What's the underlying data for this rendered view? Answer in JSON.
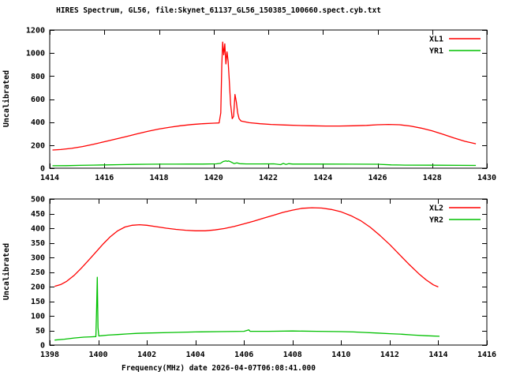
{
  "title": "HIRES Spectrum, GL56, file:Skynet_61137_GL56_150385_100660.spect.cyb.txt",
  "xlabel": "Frequency(MHz) date 2026-04-07T06:08:41.000",
  "colors": {
    "series1": "#ff0000",
    "series2": "#00c000",
    "axis": "#000000",
    "background": "#ffffff"
  },
  "chart_data": [
    {
      "type": "line",
      "title": "",
      "ylabel": "Uncalibrated",
      "xlabel": "",
      "xlim": [
        1414,
        1430
      ],
      "ylim": [
        0,
        1200
      ],
      "xticks": [
        1414,
        1416,
        1418,
        1420,
        1422,
        1424,
        1426,
        1428,
        1430
      ],
      "yticks": [
        0,
        200,
        400,
        600,
        800,
        1000,
        1200
      ],
      "grid": false,
      "legend_position": "top-right-inside",
      "series": [
        {
          "name": "XL1",
          "color": "#ff0000",
          "points": [
            [
              1414.1,
              158
            ],
            [
              1414.4,
              162
            ],
            [
              1414.8,
              172
            ],
            [
              1415.2,
              188
            ],
            [
              1415.6,
              208
            ],
            [
              1416.0,
              230
            ],
            [
              1416.4,
              252
            ],
            [
              1416.8,
              274
            ],
            [
              1417.2,
              298
            ],
            [
              1417.6,
              320
            ],
            [
              1418.0,
              340
            ],
            [
              1418.4,
              356
            ],
            [
              1418.8,
              369
            ],
            [
              1419.2,
              379
            ],
            [
              1419.6,
              386
            ],
            [
              1420.0,
              391
            ],
            [
              1420.2,
              393
            ],
            [
              1420.26,
              480
            ],
            [
              1420.3,
              900
            ],
            [
              1420.33,
              1095
            ],
            [
              1420.37,
              985
            ],
            [
              1420.41,
              1080
            ],
            [
              1420.45,
              905
            ],
            [
              1420.49,
              1010
            ],
            [
              1420.53,
              930
            ],
            [
              1420.57,
              770
            ],
            [
              1420.62,
              560
            ],
            [
              1420.68,
              430
            ],
            [
              1420.73,
              450
            ],
            [
              1420.78,
              640
            ],
            [
              1420.83,
              575
            ],
            [
              1420.88,
              480
            ],
            [
              1420.93,
              430
            ],
            [
              1421.0,
              410
            ],
            [
              1421.3,
              395
            ],
            [
              1421.7,
              386
            ],
            [
              1422.1,
              380
            ],
            [
              1422.6,
              375
            ],
            [
              1423.1,
              371
            ],
            [
              1423.6,
              368
            ],
            [
              1424.1,
              366
            ],
            [
              1424.6,
              366
            ],
            [
              1425.1,
              368
            ],
            [
              1425.6,
              372
            ],
            [
              1426.0,
              377
            ],
            [
              1426.4,
              380
            ],
            [
              1426.8,
              377
            ],
            [
              1427.2,
              366
            ],
            [
              1427.6,
              348
            ],
            [
              1428.0,
              324
            ],
            [
              1428.4,
              294
            ],
            [
              1428.8,
              262
            ],
            [
              1429.2,
              233
            ],
            [
              1429.6,
              212
            ]
          ]
        },
        {
          "name": "YR1",
          "color": "#00c000",
          "points": [
            [
              1414.1,
              21
            ],
            [
              1414.6,
              22
            ],
            [
              1415.1,
              25
            ],
            [
              1415.6,
              27
            ],
            [
              1416.1,
              29
            ],
            [
              1416.6,
              31
            ],
            [
              1417.1,
              33
            ],
            [
              1417.6,
              34
            ],
            [
              1418.1,
              35
            ],
            [
              1418.6,
              35
            ],
            [
              1419.1,
              36
            ],
            [
              1419.6,
              36
            ],
            [
              1420.1,
              38
            ],
            [
              1420.25,
              42
            ],
            [
              1420.35,
              58
            ],
            [
              1420.45,
              64
            ],
            [
              1420.5,
              59
            ],
            [
              1420.55,
              63
            ],
            [
              1420.65,
              52
            ],
            [
              1420.75,
              40
            ],
            [
              1420.85,
              46
            ],
            [
              1420.95,
              39
            ],
            [
              1421.2,
              37
            ],
            [
              1421.7,
              37
            ],
            [
              1422.2,
              38
            ],
            [
              1422.45,
              31
            ],
            [
              1422.55,
              41
            ],
            [
              1422.65,
              33
            ],
            [
              1422.75,
              39
            ],
            [
              1422.9,
              36
            ],
            [
              1423.4,
              36
            ],
            [
              1424.0,
              36
            ],
            [
              1425.0,
              35
            ],
            [
              1426.0,
              34
            ],
            [
              1426.5,
              29
            ],
            [
              1427.0,
              27
            ],
            [
              1428.0,
              26
            ],
            [
              1429.0,
              25
            ],
            [
              1429.6,
              24
            ]
          ]
        }
      ]
    },
    {
      "type": "line",
      "title": "",
      "ylabel": "Uncalibrated",
      "xlabel": "Frequency(MHz) date 2026-04-07T06:08:41.000",
      "xlim": [
        1398,
        1416
      ],
      "ylim": [
        0,
        500
      ],
      "xticks": [
        1398,
        1400,
        1402,
        1404,
        1406,
        1408,
        1410,
        1412,
        1414,
        1416
      ],
      "yticks": [
        0,
        50,
        100,
        150,
        200,
        250,
        300,
        350,
        400,
        450,
        500
      ],
      "grid": false,
      "legend_position": "top-right-inside",
      "series": [
        {
          "name": "XL2",
          "color": "#ff0000",
          "points": [
            [
              1398.2,
              201
            ],
            [
              1398.45,
              207
            ],
            [
              1398.7,
              218
            ],
            [
              1399.0,
              238
            ],
            [
              1399.3,
              263
            ],
            [
              1399.6,
              290
            ],
            [
              1399.9,
              318
            ],
            [
              1400.2,
              346
            ],
            [
              1400.5,
              371
            ],
            [
              1400.8,
              391
            ],
            [
              1401.1,
              404
            ],
            [
              1401.4,
              410
            ],
            [
              1401.7,
              412
            ],
            [
              1402.0,
              410
            ],
            [
              1402.4,
              405
            ],
            [
              1402.8,
              400
            ],
            [
              1403.2,
              396
            ],
            [
              1403.6,
              393
            ],
            [
              1404.0,
              391
            ],
            [
              1404.4,
              391
            ],
            [
              1404.8,
              394
            ],
            [
              1405.2,
              399
            ],
            [
              1405.6,
              406
            ],
            [
              1406.0,
              415
            ],
            [
              1406.4,
              424
            ],
            [
              1406.8,
              434
            ],
            [
              1407.2,
              444
            ],
            [
              1407.6,
              454
            ],
            [
              1408.0,
              462
            ],
            [
              1408.4,
              468
            ],
            [
              1408.8,
              470
            ],
            [
              1409.2,
              469
            ],
            [
              1409.6,
              464
            ],
            [
              1410.0,
              456
            ],
            [
              1410.4,
              443
            ],
            [
              1410.8,
              426
            ],
            [
              1411.2,
              403
            ],
            [
              1411.6,
              375
            ],
            [
              1412.0,
              344
            ],
            [
              1412.4,
              310
            ],
            [
              1412.8,
              276
            ],
            [
              1413.2,
              244
            ],
            [
              1413.5,
              223
            ],
            [
              1413.8,
              206
            ],
            [
              1414.0,
              199
            ]
          ]
        },
        {
          "name": "YR2",
          "color": "#00c000",
          "points": [
            [
              1398.2,
              17
            ],
            [
              1398.6,
              20
            ],
            [
              1399.0,
              24
            ],
            [
              1399.4,
              27
            ],
            [
              1399.7,
              28
            ],
            [
              1399.9,
              29
            ],
            [
              1399.93,
              120
            ],
            [
              1399.96,
              232
            ],
            [
              1399.99,
              60
            ],
            [
              1400.02,
              31
            ],
            [
              1400.4,
              34
            ],
            [
              1400.8,
              36
            ],
            [
              1401.2,
              38
            ],
            [
              1401.6,
              40
            ],
            [
              1402.0,
              41
            ],
            [
              1403.0,
              43
            ],
            [
              1404.0,
              45
            ],
            [
              1405.0,
              46
            ],
            [
              1406.0,
              47
            ],
            [
              1406.2,
              52
            ],
            [
              1406.25,
              47
            ],
            [
              1407.0,
              47
            ],
            [
              1408.0,
              48
            ],
            [
              1409.0,
              47
            ],
            [
              1410.0,
              46
            ],
            [
              1410.5,
              45
            ],
            [
              1411.0,
              43
            ],
            [
              1411.5,
              41
            ],
            [
              1412.0,
              39
            ],
            [
              1412.5,
              37
            ],
            [
              1413.0,
              34
            ],
            [
              1413.5,
              32
            ],
            [
              1414.05,
              30
            ]
          ]
        }
      ]
    }
  ]
}
